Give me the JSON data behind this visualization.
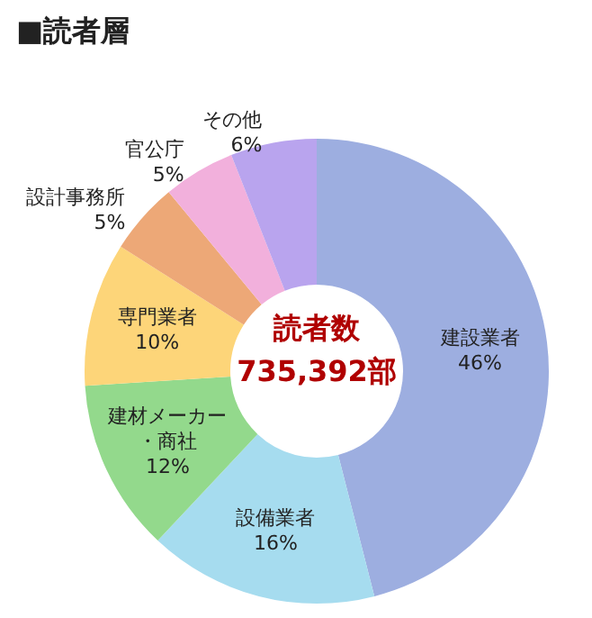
{
  "chart_data": {
    "type": "donut",
    "title": "■読者層",
    "categories": [
      "建設業者",
      "設備業者",
      "建材メーカー・商社",
      "専門業者",
      "設計事務所",
      "官公庁",
      "その他"
    ],
    "values": [
      46,
      16,
      12,
      10,
      5,
      5,
      6
    ],
    "value_labels": [
      "46%",
      "16%",
      "12%",
      "10%",
      "5%",
      "5%",
      "6%"
    ],
    "colors": [
      "#9daee0",
      "#a6dcef",
      "#93d98c",
      "#fdd579",
      "#eda877",
      "#f2b0dc",
      "#b9a4ee"
    ],
    "annotations": [
      "読者数",
      "735,392部"
    ],
    "legend": false
  }
}
